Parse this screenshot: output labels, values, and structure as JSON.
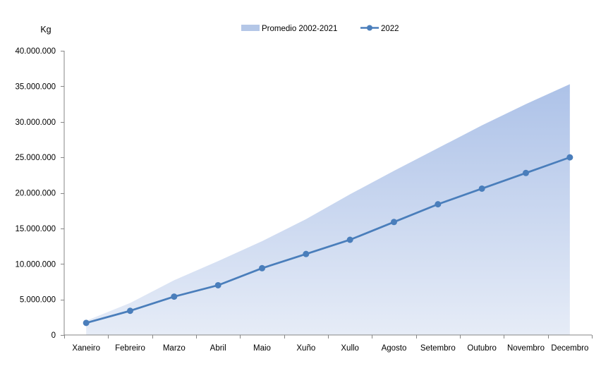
{
  "chart_data": {
    "type": "line",
    "title": "",
    "xlabel": "",
    "ylabel": "Kg",
    "ylim": [
      0,
      40000000
    ],
    "yticks": [
      "0",
      "5.000.000",
      "10.000.000",
      "15.000.000",
      "20.000.000",
      "25.000.000",
      "30.000.000",
      "35.000.000",
      "40.000.000"
    ],
    "ytick_values": [
      0,
      5000000,
      10000000,
      15000000,
      20000000,
      25000000,
      30000000,
      35000000,
      40000000
    ],
    "categories": [
      "Xaneiro",
      "Febreiro",
      "Marzo",
      "Abril",
      "Maio",
      "Xuño",
      "Xullo",
      "Agosto",
      "Setembro",
      "Outubro",
      "Novembro",
      "Decembro"
    ],
    "grid": false,
    "legend_position": "top",
    "series": [
      {
        "name": "Promedio 2002-2021",
        "kind": "area",
        "color": "#b4c7e7",
        "values": [
          2000000,
          4500000,
          7700000,
          10400000,
          13200000,
          16300000,
          19800000,
          23100000,
          26300000,
          29500000,
          32500000,
          35300000
        ]
      },
      {
        "name": "2022",
        "kind": "line",
        "color": "#4a7ebb",
        "values": [
          1700000,
          3400000,
          5400000,
          7000000,
          9400000,
          11400000,
          13400000,
          15900000,
          18400000,
          20600000,
          22800000,
          25000000
        ]
      }
    ]
  }
}
